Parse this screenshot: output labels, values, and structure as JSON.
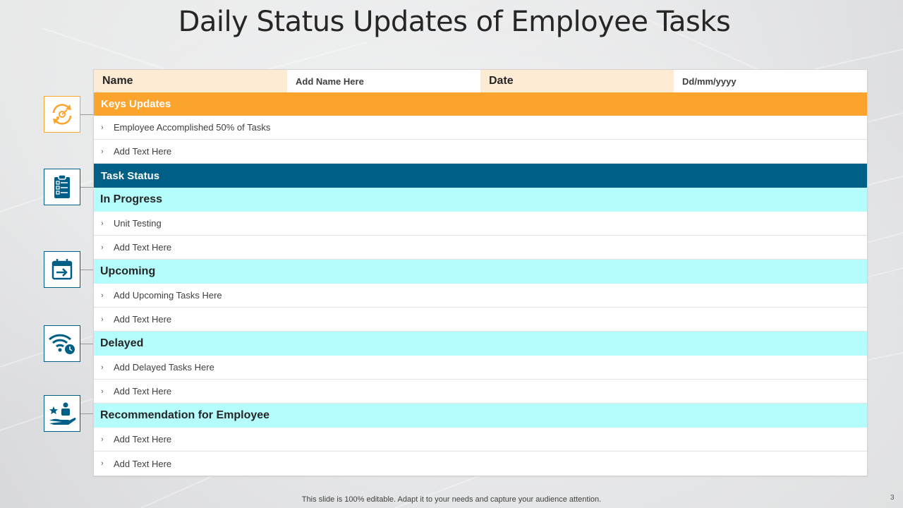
{
  "title": "Daily Status Updates of Employee Tasks",
  "header": {
    "name_label": "Name",
    "name_value": "Add Name Here",
    "date_label": "Date",
    "date_value": "Dd/mm/yyyy"
  },
  "keys_updates": {
    "heading": "Keys Updates",
    "items": [
      "Employee Accomplished 50% of Tasks",
      "Add Text Here"
    ]
  },
  "task_status": {
    "heading": "Task Status",
    "in_progress": {
      "heading": "In Progress",
      "items": [
        "Unit Testing",
        "Add Text Here"
      ]
    },
    "upcoming": {
      "heading": "Upcoming",
      "items": [
        "Add Upcoming Tasks Here",
        "Add Text Here"
      ]
    },
    "delayed": {
      "heading": "Delayed",
      "items": [
        "Add Delayed Tasks Here",
        "Add Text Here"
      ]
    }
  },
  "recommendation": {
    "heading": "Recommendation for Employee",
    "items": [
      "Add Text Here",
      "Add Text Here"
    ]
  },
  "bullet": "›",
  "icons": [
    "target-cycle-icon",
    "clipboard-checklist-icon",
    "calendar-arrow-icon",
    "wifi-clock-icon",
    "hand-star-person-icon"
  ],
  "colors": {
    "accent_orange": "#fba42d",
    "accent_blue": "#005f86",
    "sub_row_cyan": "#b5fcfc",
    "header_label_bg": "#fdebd3"
  },
  "footer": "This slide is 100% editable. Adapt it to your  needs and capture your audience attention.",
  "page_number": "3"
}
